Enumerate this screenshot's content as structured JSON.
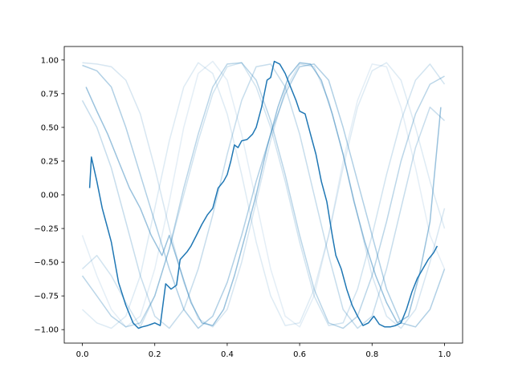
{
  "chart_data": {
    "type": "line",
    "title": "",
    "xlabel": "",
    "ylabel": "",
    "xlim": [
      -0.05,
      1.05
    ],
    "ylim": [
      -1.1,
      1.1
    ],
    "xticks": [
      0.0,
      0.2,
      0.4,
      0.6,
      0.8,
      1.0
    ],
    "xtick_labels": [
      "0.0",
      "0.2",
      "0.4",
      "0.6",
      "0.8",
      "1.0"
    ],
    "yticks": [
      -1.0,
      -0.75,
      -0.5,
      -0.25,
      0.0,
      0.25,
      0.5,
      0.75,
      1.0
    ],
    "ytick_labels": [
      "−1.00",
      "−0.75",
      "−0.50",
      "−0.25",
      "0.00",
      "0.25",
      "0.50",
      "0.75",
      "1.00"
    ],
    "grid": false,
    "legend": "none",
    "color": "#1f77b4",
    "series": [
      {
        "opacity": 1.0,
        "width": 1.5,
        "x": [
          0.02,
          0.025,
          0.04,
          0.055,
          0.07,
          0.08,
          0.09,
          0.1,
          0.12,
          0.14,
          0.155,
          0.165,
          0.18,
          0.19,
          0.2,
          0.215,
          0.23,
          0.245,
          0.26,
          0.27,
          0.28,
          0.29,
          0.3,
          0.315,
          0.33,
          0.345,
          0.36,
          0.375,
          0.39,
          0.4,
          0.41,
          0.42,
          0.43,
          0.44,
          0.455,
          0.47,
          0.48,
          0.495,
          0.51,
          0.52,
          0.53,
          0.545,
          0.56,
          0.575,
          0.59,
          0.6,
          0.615,
          0.63,
          0.645,
          0.66,
          0.675,
          0.69,
          0.7,
          0.715,
          0.73,
          0.745,
          0.76,
          0.775,
          0.79,
          0.805,
          0.82,
          0.835,
          0.85,
          0.865,
          0.88,
          0.895,
          0.91,
          0.925,
          0.94,
          0.955,
          0.97,
          0.98
        ],
        "y": [
          0.05,
          0.28,
          0.1,
          -0.1,
          -0.25,
          -0.35,
          -0.5,
          -0.65,
          -0.82,
          -0.95,
          -0.99,
          -0.98,
          -0.97,
          -0.96,
          -0.95,
          -0.97,
          -0.66,
          -0.7,
          -0.67,
          -0.48,
          -0.45,
          -0.42,
          -0.38,
          -0.3,
          -0.22,
          -0.15,
          -0.1,
          0.05,
          0.1,
          0.15,
          0.25,
          0.37,
          0.35,
          0.4,
          0.41,
          0.45,
          0.5,
          0.65,
          0.85,
          0.87,
          0.99,
          0.97,
          0.9,
          0.8,
          0.7,
          0.62,
          0.6,
          0.45,
          0.3,
          0.1,
          -0.05,
          -0.3,
          -0.45,
          -0.55,
          -0.7,
          -0.82,
          -0.9,
          -0.97,
          -0.95,
          -0.9,
          -0.96,
          -0.98,
          -0.98,
          -0.97,
          -0.95,
          -0.85,
          -0.72,
          -0.62,
          -0.55,
          -0.48,
          -0.43,
          -0.38
        ]
      },
      {
        "opacity": 0.45,
        "width": 1.5,
        "x": [
          0.01,
          0.04,
          0.07,
          0.1,
          0.13,
          0.16,
          0.19,
          0.22,
          0.24,
          0.27,
          0.3,
          0.33,
          0.36,
          0.39,
          0.42,
          0.45,
          0.48,
          0.51,
          0.54,
          0.57,
          0.6,
          0.63,
          0.66,
          0.69,
          0.72,
          0.75,
          0.78,
          0.81,
          0.84,
          0.87,
          0.9,
          0.93,
          0.96,
          0.99
        ],
        "y": [
          0.8,
          0.62,
          0.45,
          0.25,
          0.05,
          -0.1,
          -0.3,
          -0.45,
          -0.3,
          -0.55,
          -0.8,
          -0.95,
          -0.97,
          -0.85,
          -0.6,
          -0.3,
          0.0,
          0.35,
          0.65,
          0.88,
          0.98,
          0.97,
          0.85,
          0.6,
          0.3,
          -0.05,
          -0.35,
          -0.6,
          -0.8,
          -0.95,
          -0.9,
          -0.6,
          -0.2,
          0.65
        ]
      },
      {
        "opacity": 0.35,
        "width": 1.5,
        "x": [
          0.0,
          0.04,
          0.08,
          0.12,
          0.16,
          0.2,
          0.24,
          0.28,
          0.32,
          0.36,
          0.4,
          0.44,
          0.48,
          0.52,
          0.56,
          0.6,
          0.64,
          0.68,
          0.72,
          0.76,
          0.8,
          0.84,
          0.88,
          0.92,
          0.96,
          1.0
        ],
        "y": [
          0.96,
          0.92,
          0.8,
          0.5,
          0.15,
          -0.2,
          -0.55,
          -0.85,
          -0.99,
          -0.9,
          -0.65,
          -0.3,
          0.1,
          0.45,
          0.75,
          0.95,
          0.97,
          0.85,
          0.5,
          0.1,
          -0.3,
          -0.7,
          -0.95,
          -0.98,
          -0.85,
          -0.55
        ]
      },
      {
        "opacity": 0.3,
        "width": 1.5,
        "x": [
          0.0,
          0.04,
          0.08,
          0.12,
          0.16,
          0.2,
          0.24,
          0.28,
          0.32,
          0.36,
          0.4,
          0.44,
          0.48,
          0.52,
          0.56,
          0.6,
          0.64,
          0.68,
          0.72,
          0.76,
          0.8,
          0.84,
          0.88,
          0.92,
          0.96,
          1.0
        ],
        "y": [
          -0.6,
          -0.75,
          -0.9,
          -0.98,
          -0.95,
          -0.75,
          -0.4,
          0.05,
          0.45,
          0.8,
          0.97,
          0.98,
          0.85,
          0.55,
          0.15,
          -0.3,
          -0.7,
          -0.95,
          -0.99,
          -0.9,
          -0.6,
          -0.2,
          0.25,
          0.6,
          0.82,
          0.88
        ]
      },
      {
        "opacity": 0.25,
        "width": 1.5,
        "x": [
          0.0,
          0.04,
          0.08,
          0.12,
          0.16,
          0.2,
          0.24,
          0.28,
          0.32,
          0.36,
          0.4,
          0.44,
          0.48,
          0.52,
          0.56,
          0.6,
          0.64,
          0.68,
          0.72,
          0.76,
          0.8,
          0.84,
          0.88,
          0.92,
          0.96,
          1.0
        ],
        "y": [
          0.7,
          0.5,
          0.2,
          -0.2,
          -0.6,
          -0.9,
          -0.99,
          -0.85,
          -0.55,
          -0.15,
          0.3,
          0.7,
          0.95,
          0.97,
          0.8,
          0.45,
          0.0,
          -0.45,
          -0.85,
          -0.99,
          -0.9,
          -0.55,
          -0.1,
          0.35,
          0.65,
          0.55
        ]
      },
      {
        "opacity": 0.2,
        "width": 1.5,
        "x": [
          0.0,
          0.04,
          0.08,
          0.12,
          0.16,
          0.2,
          0.24,
          0.28,
          0.32,
          0.36,
          0.4,
          0.44,
          0.48,
          0.52,
          0.56,
          0.6,
          0.64,
          0.68,
          0.72,
          0.76,
          0.8,
          0.84,
          0.88,
          0.92,
          0.96,
          1.0
        ],
        "y": [
          -0.55,
          -0.45,
          -0.6,
          -0.8,
          -0.98,
          -0.75,
          -0.4,
          0.0,
          0.4,
          0.75,
          0.95,
          0.98,
          0.8,
          0.5,
          0.1,
          -0.35,
          -0.75,
          -0.97,
          -0.95,
          -0.7,
          -0.3,
          0.15,
          0.55,
          0.85,
          0.97,
          0.82
        ]
      },
      {
        "opacity": 0.18,
        "width": 1.5,
        "x": [
          0.0,
          0.04,
          0.08,
          0.12,
          0.16,
          0.2,
          0.24,
          0.28,
          0.32,
          0.36,
          0.4,
          0.44,
          0.48,
          0.52,
          0.56,
          0.6,
          0.64,
          0.68,
          0.72,
          0.76,
          0.8,
          0.84,
          0.88,
          0.92,
          0.96,
          1.0
        ],
        "y": [
          0.98,
          0.97,
          0.95,
          0.85,
          0.6,
          0.2,
          -0.25,
          -0.65,
          -0.92,
          -0.98,
          -0.85,
          -0.5,
          -0.05,
          0.4,
          0.78,
          0.97,
          0.95,
          0.7,
          0.3,
          -0.15,
          -0.6,
          -0.9,
          -0.99,
          -0.85,
          -0.5,
          -0.1
        ]
      },
      {
        "opacity": 0.15,
        "width": 1.5,
        "x": [
          0.0,
          0.04,
          0.08,
          0.12,
          0.16,
          0.2,
          0.24,
          0.28,
          0.32,
          0.36,
          0.4,
          0.44,
          0.48,
          0.52,
          0.56,
          0.6,
          0.64,
          0.68,
          0.72,
          0.76,
          0.8,
          0.84,
          0.88,
          0.92,
          0.96,
          1.0
        ],
        "y": [
          -0.85,
          -0.95,
          -0.99,
          -0.9,
          -0.6,
          -0.1,
          0.4,
          0.8,
          0.98,
          0.9,
          0.6,
          0.15,
          -0.35,
          -0.75,
          -0.97,
          -0.95,
          -0.7,
          -0.3,
          0.2,
          0.65,
          0.92,
          0.98,
          0.85,
          0.5,
          0.1,
          -0.25
        ]
      },
      {
        "opacity": 0.12,
        "width": 1.5,
        "x": [
          0.0,
          0.04,
          0.08,
          0.12,
          0.16,
          0.2,
          0.24,
          0.28,
          0.32,
          0.36,
          0.4,
          0.44,
          0.48,
          0.52,
          0.56,
          0.6,
          0.64,
          0.68,
          0.72,
          0.76,
          0.8,
          0.84,
          0.88,
          0.92,
          0.96,
          1.0
        ],
        "y": [
          -0.3,
          -0.6,
          -0.85,
          -0.98,
          -0.9,
          -0.55,
          -0.05,
          0.5,
          0.9,
          0.99,
          0.85,
          0.45,
          -0.05,
          -0.55,
          -0.9,
          -0.98,
          -0.75,
          -0.3,
          0.25,
          0.7,
          0.97,
          0.95,
          0.65,
          0.2,
          -0.3,
          -0.55
        ]
      }
    ]
  }
}
